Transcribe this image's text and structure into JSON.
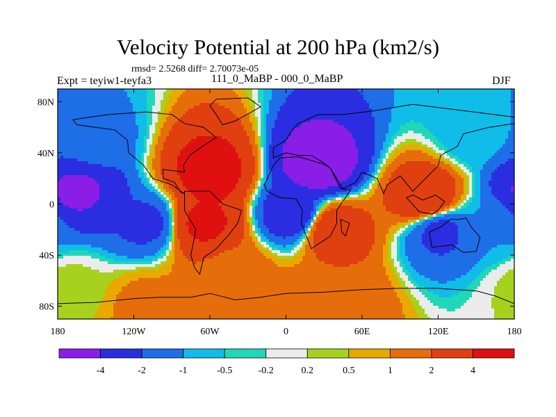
{
  "header": {
    "title": "Velocity Potential at 200 hPa (km2/s)",
    "stats": "rmsd= 2.5268 diff= 2.70073e-05",
    "expt": "Expt = teyiw1-teyfa3",
    "subtitle": "111_0_MaBP - 000_0_MaBP",
    "season": "DJF"
  },
  "chart_data": {
    "type": "heatmap",
    "title": "Velocity Potential at 200 hPa (km2/s)",
    "xlim": [
      -180,
      180
    ],
    "ylim": [
      -90,
      90
    ],
    "x_ticks": [
      {
        "value": -180,
        "label": "180"
      },
      {
        "value": -120,
        "label": "120W"
      },
      {
        "value": -60,
        "label": "60W"
      },
      {
        "value": 0,
        "label": "0"
      },
      {
        "value": 60,
        "label": "60E"
      },
      {
        "value": 120,
        "label": "120E"
      },
      {
        "value": 180,
        "label": "180"
      }
    ],
    "y_ticks": [
      {
        "value": 80,
        "label": "80N"
      },
      {
        "value": 40,
        "label": "40N"
      },
      {
        "value": 0,
        "label": "0"
      },
      {
        "value": -40,
        "label": "40S"
      },
      {
        "value": -80,
        "label": "80S"
      }
    ],
    "levels": [
      -4,
      -2,
      -1,
      -0.5,
      -0.2,
      0.2,
      0.5,
      1,
      2,
      4
    ],
    "colorbar_labels": [
      "-4",
      "-2",
      "-1",
      "-0.5",
      "-0.2",
      "0.2",
      "0.5",
      "1",
      "2",
      "4"
    ],
    "colors": [
      "#8a1ee6",
      "#2a2ee0",
      "#1e6ee8",
      "#10bce8",
      "#20d8b8",
      "#ebebeb",
      "#a6d21e",
      "#e8aa00",
      "#e66e0a",
      "#e04010",
      "#e01010"
    ],
    "field_centers": [
      {
        "lon": -165,
        "lat": 10,
        "value": -4.2
      },
      {
        "lon": -110,
        "lat": -15,
        "value": -2.2
      },
      {
        "lon": -152,
        "lat": 50,
        "value": -1.3
      },
      {
        "lon": -60,
        "lat": 25,
        "value": 4.6
      },
      {
        "lon": -65,
        "lat": -15,
        "value": 4.2
      },
      {
        "lon": -42,
        "lat": -55,
        "value": 1.6
      },
      {
        "lon": 25,
        "lat": 30,
        "value": -5.0
      },
      {
        "lon": 5,
        "lat": -8,
        "value": -2.8
      },
      {
        "lon": 38,
        "lat": -20,
        "value": 3.0
      },
      {
        "lon": 110,
        "lat": 5,
        "value": 3.4
      },
      {
        "lon": 122,
        "lat": -22,
        "value": -2.2
      },
      {
        "lon": 160,
        "lat": -18,
        "value": -1.0
      },
      {
        "lon": 150,
        "lat": 55,
        "value": -0.8
      },
      {
        "lon": 40,
        "lat": -75,
        "value": 1.8
      },
      {
        "lon": -110,
        "lat": -80,
        "value": 1.2
      },
      {
        "lon": -170,
        "lat": -65,
        "value": 0.3
      }
    ]
  }
}
